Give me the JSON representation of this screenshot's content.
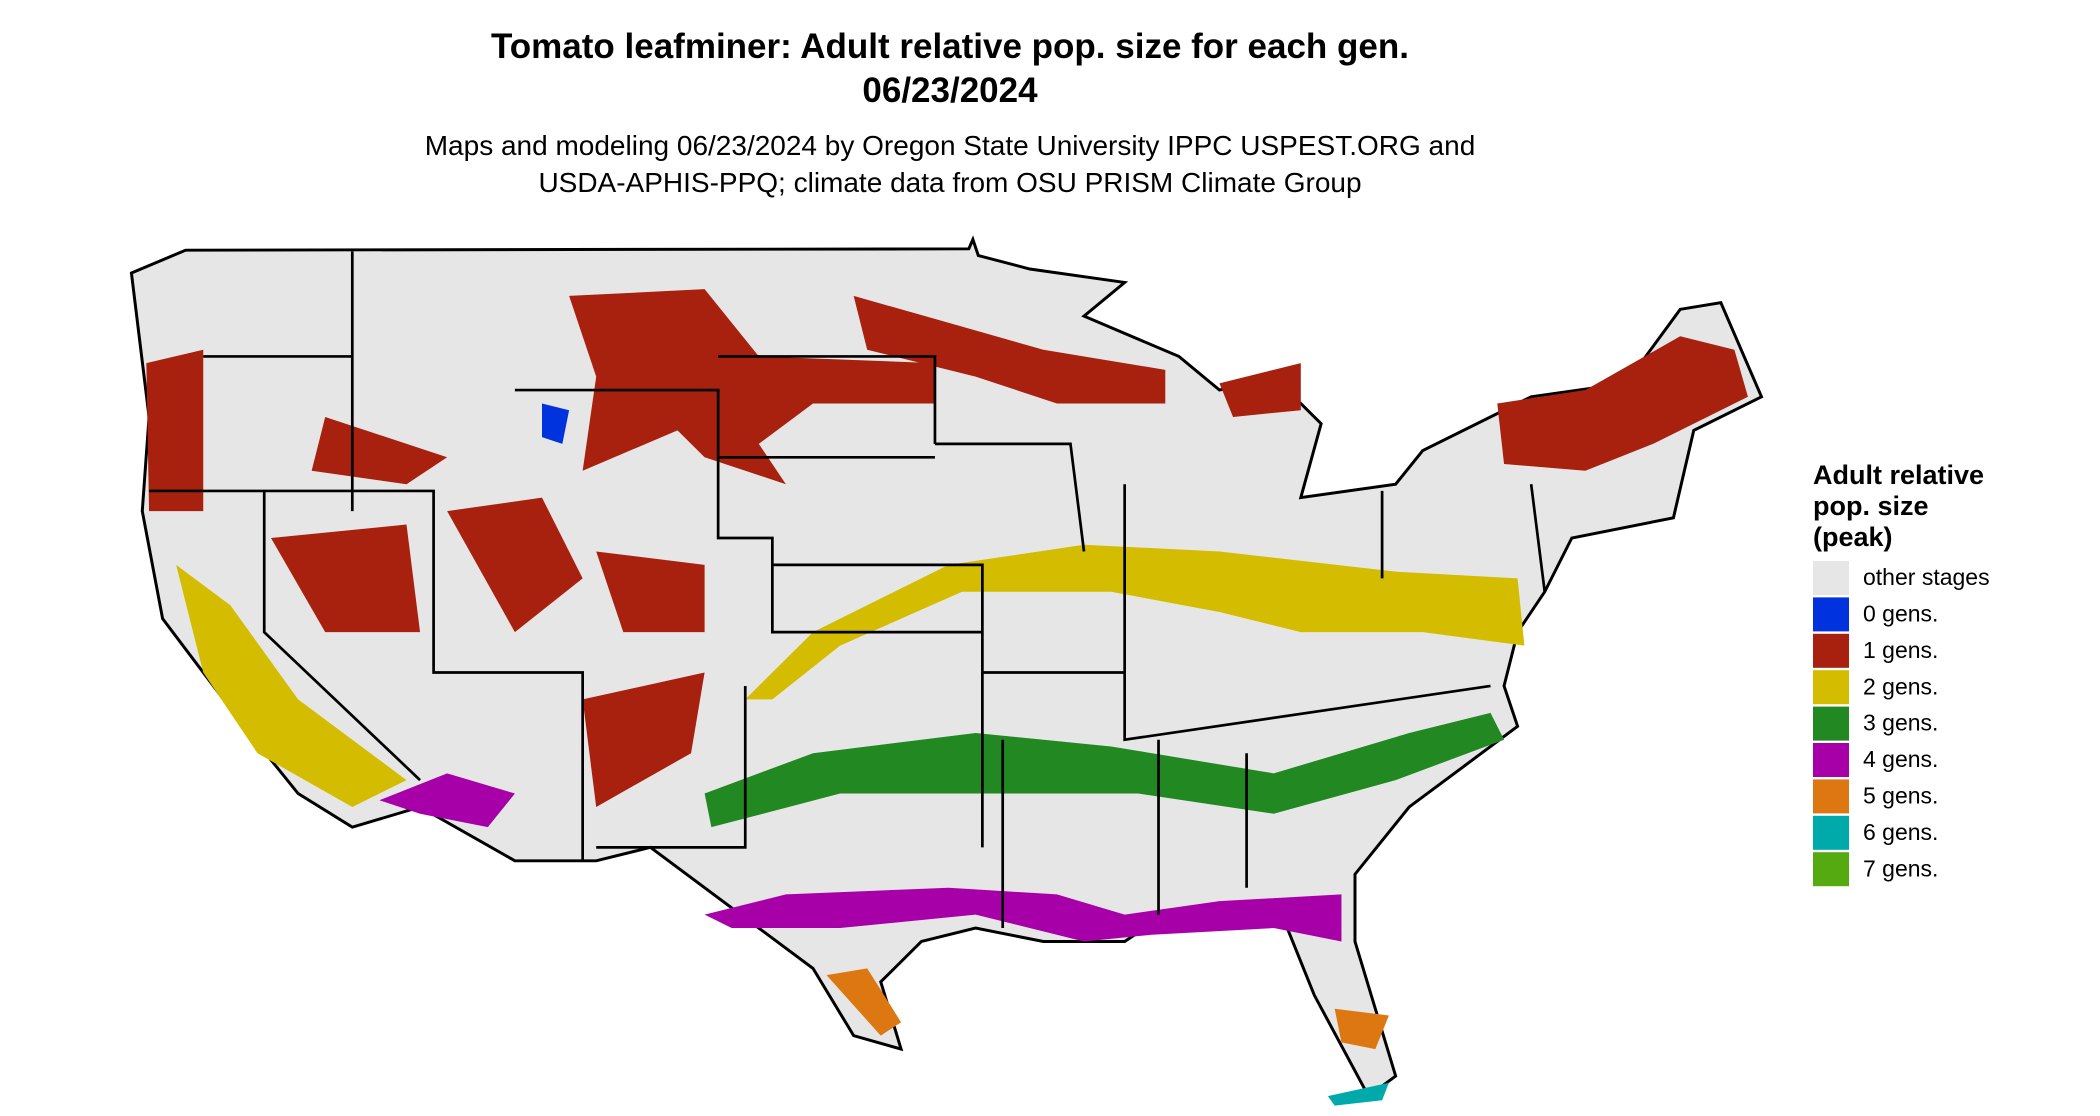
{
  "header": {
    "title": "Tomato leafminer: Adult relative pop. size for each gen.",
    "date": "06/23/2024",
    "subtitle": [
      "Maps and modeling 06/23/2024 by Oregon State University IPPC USPEST.ORG and",
      "USDA-APHIS-PPQ; climate data from OSU PRISM Climate Group"
    ]
  },
  "legend": {
    "title": [
      "Adult relative",
      "pop. size",
      "(peak)"
    ],
    "items": [
      {
        "label": "other stages",
        "color": "#e6e6e6"
      },
      {
        "label": "0 gens.",
        "color": "#0033dd"
      },
      {
        "label": "1 gens.",
        "color": "#a8200e"
      },
      {
        "label": "2 gens.",
        "color": "#d4bc00"
      },
      {
        "label": "3 gens.",
        "color": "#228822"
      },
      {
        "label": "4 gens.",
        "color": "#a800a8"
      },
      {
        "label": "5 gens.",
        "color": "#dd7711"
      },
      {
        "label": "6 gens.",
        "color": "#00aaaa"
      },
      {
        "label": "7 gens.",
        "color": "#55aa11"
      }
    ]
  }
}
